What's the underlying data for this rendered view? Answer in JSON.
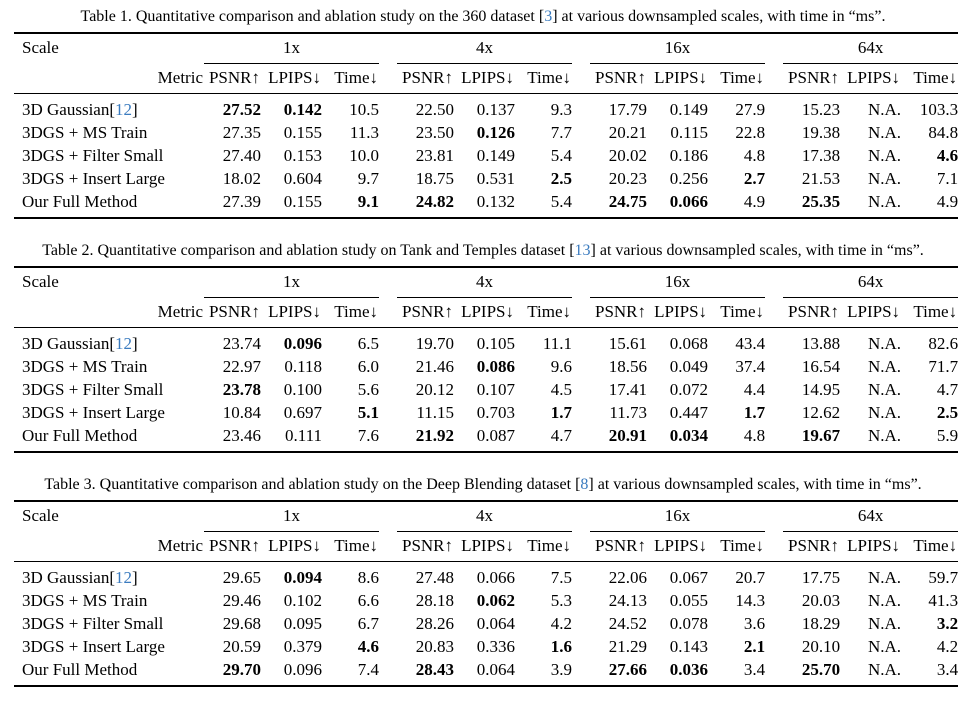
{
  "page": {
    "background_color": "#ffffff",
    "text_color": "#000000",
    "cite_color": "#3a7bbf"
  },
  "tables": [
    {
      "caption": {
        "before": "Table 1. Quantitative comparison and ablation study on the 360 dataset [",
        "cite": "3",
        "after": "] at various downsampled scales, with time in “ms”."
      },
      "scale_label": "Scale",
      "metric_label": "Metric",
      "scales": [
        "1x",
        "4x",
        "16x",
        "64x"
      ],
      "metrics": [
        "PSNR↑",
        "LPIPS↓",
        "Time↓"
      ],
      "rows": [
        {
          "method": {
            "before": "3D Gaussian[",
            "cite": "12",
            "after": "]"
          },
          "values": [
            "27.52",
            "0.142",
            "10.5",
            "22.50",
            "0.137",
            "9.3",
            "17.79",
            "0.149",
            "27.9",
            "15.23",
            "N.A.",
            "103.3"
          ],
          "bold": [
            1,
            1,
            0,
            0,
            0,
            0,
            0,
            0,
            0,
            0,
            0,
            0
          ]
        },
        {
          "method": {
            "before": "3DGS + MS Train",
            "cite": "",
            "after": ""
          },
          "values": [
            "27.35",
            "0.155",
            "11.3",
            "23.50",
            "0.126",
            "7.7",
            "20.21",
            "0.115",
            "22.8",
            "19.38",
            "N.A.",
            "84.8"
          ],
          "bold": [
            0,
            0,
            0,
            0,
            1,
            0,
            0,
            0,
            0,
            0,
            0,
            0
          ]
        },
        {
          "method": {
            "before": "3DGS + Filter Small",
            "cite": "",
            "after": ""
          },
          "values": [
            "27.40",
            "0.153",
            "10.0",
            "23.81",
            "0.149",
            "5.4",
            "20.02",
            "0.186",
            "4.8",
            "17.38",
            "N.A.",
            "4.6"
          ],
          "bold": [
            0,
            0,
            0,
            0,
            0,
            0,
            0,
            0,
            0,
            0,
            0,
            1
          ]
        },
        {
          "method": {
            "before": "3DGS + Insert Large",
            "cite": "",
            "after": ""
          },
          "values": [
            "18.02",
            "0.604",
            "9.7",
            "18.75",
            "0.531",
            "2.5",
            "20.23",
            "0.256",
            "2.7",
            "21.53",
            "N.A.",
            "7.1"
          ],
          "bold": [
            0,
            0,
            0,
            0,
            0,
            1,
            0,
            0,
            1,
            0,
            0,
            0
          ]
        },
        {
          "method": {
            "before": "Our Full Method",
            "cite": "",
            "after": ""
          },
          "values": [
            "27.39",
            "0.155",
            "9.1",
            "24.82",
            "0.132",
            "5.4",
            "24.75",
            "0.066",
            "4.9",
            "25.35",
            "N.A.",
            "4.9"
          ],
          "bold": [
            0,
            0,
            1,
            1,
            0,
            0,
            1,
            1,
            0,
            1,
            0,
            0
          ]
        }
      ]
    },
    {
      "caption": {
        "before": "Table 2. Quantitative comparison and ablation study on Tank and Temples dataset [",
        "cite": "13",
        "after": "] at various downsampled scales, with time in “ms”."
      },
      "scale_label": "Scale",
      "metric_label": "Metric",
      "scales": [
        "1x",
        "4x",
        "16x",
        "64x"
      ],
      "metrics": [
        "PSNR↑",
        "LPIPS↓",
        "Time↓"
      ],
      "rows": [
        {
          "method": {
            "before": "3D Gaussian[",
            "cite": "12",
            "after": "]"
          },
          "values": [
            "23.74",
            "0.096",
            "6.5",
            "19.70",
            "0.105",
            "11.1",
            "15.61",
            "0.068",
            "43.4",
            "13.88",
            "N.A.",
            "82.6"
          ],
          "bold": [
            0,
            1,
            0,
            0,
            0,
            0,
            0,
            0,
            0,
            0,
            0,
            0
          ]
        },
        {
          "method": {
            "before": "3DGS + MS Train",
            "cite": "",
            "after": ""
          },
          "values": [
            "22.97",
            "0.118",
            "6.0",
            "21.46",
            "0.086",
            "9.6",
            "18.56",
            "0.049",
            "37.4",
            "16.54",
            "N.A.",
            "71.7"
          ],
          "bold": [
            0,
            0,
            0,
            0,
            1,
            0,
            0,
            0,
            0,
            0,
            0,
            0
          ]
        },
        {
          "method": {
            "before": "3DGS + Filter Small",
            "cite": "",
            "after": ""
          },
          "values": [
            "23.78",
            "0.100",
            "5.6",
            "20.12",
            "0.107",
            "4.5",
            "17.41",
            "0.072",
            "4.4",
            "14.95",
            "N.A.",
            "4.7"
          ],
          "bold": [
            1,
            0,
            0,
            0,
            0,
            0,
            0,
            0,
            0,
            0,
            0,
            0
          ]
        },
        {
          "method": {
            "before": "3DGS + Insert Large",
            "cite": "",
            "after": ""
          },
          "values": [
            "10.84",
            "0.697",
            "5.1",
            "11.15",
            "0.703",
            "1.7",
            "11.73",
            "0.447",
            "1.7",
            "12.62",
            "N.A.",
            "2.5"
          ],
          "bold": [
            0,
            0,
            1,
            0,
            0,
            1,
            0,
            0,
            1,
            0,
            0,
            1
          ]
        },
        {
          "method": {
            "before": "Our Full Method",
            "cite": "",
            "after": ""
          },
          "values": [
            "23.46",
            "0.111",
            "7.6",
            "21.92",
            "0.087",
            "4.7",
            "20.91",
            "0.034",
            "4.8",
            "19.67",
            "N.A.",
            "5.9"
          ],
          "bold": [
            0,
            0,
            0,
            1,
            0,
            0,
            1,
            1,
            0,
            1,
            0,
            0
          ]
        }
      ]
    },
    {
      "caption": {
        "before": "Table 3. Quantitative comparison and ablation study on the Deep Blending dataset [",
        "cite": "8",
        "after": "] at various downsampled scales, with time in “ms”."
      },
      "scale_label": "Scale",
      "metric_label": "Metric",
      "scales": [
        "1x",
        "4x",
        "16x",
        "64x"
      ],
      "metrics": [
        "PSNR↑",
        "LPIPS↓",
        "Time↓"
      ],
      "rows": [
        {
          "method": {
            "before": "3D Gaussian[",
            "cite": "12",
            "after": "]"
          },
          "values": [
            "29.65",
            "0.094",
            "8.6",
            "27.48",
            "0.066",
            "7.5",
            "22.06",
            "0.067",
            "20.7",
            "17.75",
            "N.A.",
            "59.7"
          ],
          "bold": [
            0,
            1,
            0,
            0,
            0,
            0,
            0,
            0,
            0,
            0,
            0,
            0
          ]
        },
        {
          "method": {
            "before": "3DGS + MS Train",
            "cite": "",
            "after": ""
          },
          "values": [
            "29.46",
            "0.102",
            "6.6",
            "28.18",
            "0.062",
            "5.3",
            "24.13",
            "0.055",
            "14.3",
            "20.03",
            "N.A.",
            "41.3"
          ],
          "bold": [
            0,
            0,
            0,
            0,
            1,
            0,
            0,
            0,
            0,
            0,
            0,
            0
          ]
        },
        {
          "method": {
            "before": "3DGS + Filter Small",
            "cite": "",
            "after": ""
          },
          "values": [
            "29.68",
            "0.095",
            "6.7",
            "28.26",
            "0.064",
            "4.2",
            "24.52",
            "0.078",
            "3.6",
            "18.29",
            "N.A.",
            "3.2"
          ],
          "bold": [
            0,
            0,
            0,
            0,
            0,
            0,
            0,
            0,
            0,
            0,
            0,
            1
          ]
        },
        {
          "method": {
            "before": "3DGS + Insert Large",
            "cite": "",
            "after": ""
          },
          "values": [
            "20.59",
            "0.379",
            "4.6",
            "20.83",
            "0.336",
            "1.6",
            "21.29",
            "0.143",
            "2.1",
            "20.10",
            "N.A.",
            "4.2"
          ],
          "bold": [
            0,
            0,
            1,
            0,
            0,
            1,
            0,
            0,
            1,
            0,
            0,
            0
          ]
        },
        {
          "method": {
            "before": "Our Full Method",
            "cite": "",
            "after": ""
          },
          "values": [
            "29.70",
            "0.096",
            "7.4",
            "28.43",
            "0.064",
            "3.9",
            "27.66",
            "0.036",
            "3.4",
            "25.70",
            "N.A.",
            "3.4"
          ],
          "bold": [
            1,
            0,
            0,
            1,
            0,
            0,
            1,
            1,
            0,
            1,
            0,
            0
          ]
        }
      ]
    }
  ]
}
